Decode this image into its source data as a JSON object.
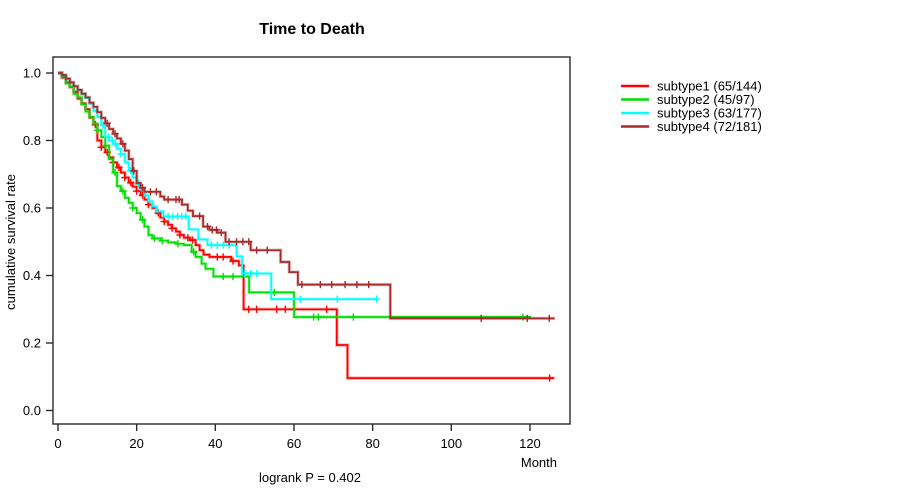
{
  "title": "Time to Death",
  "footnote": "logrank P = 0.402",
  "chart_data": {
    "type": "line",
    "variant": "kaplan-meier-step-curves",
    "title": "Time to Death",
    "xlabel": "Month",
    "ylabel": "cumulative survival rate",
    "annotation": "logrank P = 0.402",
    "xlim": [
      0,
      130
    ],
    "ylim": [
      0.0,
      1.0
    ],
    "x_ticks": [
      0,
      20,
      40,
      60,
      80,
      100,
      120
    ],
    "y_tick_labels": [
      "0.0",
      "0.2",
      "0.4",
      "0.6",
      "0.8",
      "1.0"
    ],
    "grid": false,
    "legend_position": "right-outside",
    "axis_color": "#2a2a2a",
    "series": [
      {
        "name": "subtype1",
        "label": "subtype1 (65/144)",
        "events": 65,
        "n": 144,
        "color": "#FF0000",
        "end_month": 126.2,
        "steps": [
          [
            0,
            1.0
          ],
          [
            1,
            0.986
          ],
          [
            2,
            0.972
          ],
          [
            3,
            0.958
          ],
          [
            4,
            0.944
          ],
          [
            5,
            0.924
          ],
          [
            6,
            0.91
          ],
          [
            7,
            0.893
          ],
          [
            8,
            0.868
          ],
          [
            9,
            0.847
          ],
          [
            10,
            0.8
          ],
          [
            11,
            0.78
          ],
          [
            12,
            0.765
          ],
          [
            13,
            0.75
          ],
          [
            14,
            0.735
          ],
          [
            15,
            0.72
          ],
          [
            16,
            0.705
          ],
          [
            17,
            0.69
          ],
          [
            18,
            0.675
          ],
          [
            19,
            0.663
          ],
          [
            20,
            0.65
          ],
          [
            21,
            0.638
          ],
          [
            22,
            0.625
          ],
          [
            23,
            0.61
          ],
          [
            24,
            0.6
          ],
          [
            25,
            0.585
          ],
          [
            26,
            0.572
          ],
          [
            27,
            0.56
          ],
          [
            28,
            0.55
          ],
          [
            29,
            0.54
          ],
          [
            30,
            0.53
          ],
          [
            31,
            0.52
          ],
          [
            32,
            0.512
          ],
          [
            33.5,
            0.505
          ],
          [
            35,
            0.49
          ],
          [
            36,
            0.475
          ],
          [
            37,
            0.462
          ],
          [
            38.5,
            0.455
          ],
          [
            44,
            0.443
          ],
          [
            46,
            0.43
          ],
          [
            47.2,
            0.3
          ],
          [
            70.9,
            0.194
          ],
          [
            73.6,
            0.096
          ]
        ],
        "censor_months": [
          9.5,
          11,
          12.5,
          14,
          15.5,
          17,
          18.5,
          20,
          21.5,
          23,
          25.5,
          27,
          29,
          31,
          33,
          34.2,
          40.5,
          42,
          44.5,
          48.5,
          50.5,
          55.6,
          57.8,
          68.3,
          125
        ]
      },
      {
        "name": "subtype2",
        "label": "subtype2 (45/97)",
        "events": 45,
        "n": 97,
        "color": "#00DD00",
        "end_month": 120.3,
        "steps": [
          [
            0,
            1.0
          ],
          [
            1,
            0.99
          ],
          [
            2,
            0.969
          ],
          [
            3,
            0.959
          ],
          [
            4,
            0.938
          ],
          [
            5,
            0.928
          ],
          [
            6,
            0.907
          ],
          [
            7,
            0.886
          ],
          [
            8,
            0.87
          ],
          [
            9,
            0.85
          ],
          [
            10,
            0.83
          ],
          [
            11,
            0.81
          ],
          [
            12,
            0.785
          ],
          [
            13,
            0.745
          ],
          [
            14,
            0.705
          ],
          [
            15,
            0.665
          ],
          [
            16,
            0.65
          ],
          [
            17,
            0.63
          ],
          [
            18,
            0.615
          ],
          [
            19,
            0.6
          ],
          [
            20,
            0.585
          ],
          [
            21,
            0.565
          ],
          [
            22,
            0.545
          ],
          [
            23,
            0.52
          ],
          [
            24,
            0.51
          ],
          [
            26,
            0.503
          ],
          [
            28,
            0.498
          ],
          [
            30,
            0.494
          ],
          [
            32,
            0.49
          ],
          [
            34,
            0.47
          ],
          [
            35,
            0.455
          ],
          [
            36.5,
            0.435
          ],
          [
            37.5,
            0.42
          ],
          [
            39.5,
            0.397
          ],
          [
            48.6,
            0.35
          ],
          [
            60,
            0.277
          ]
        ],
        "censor_months": [
          10,
          12,
          14.5,
          16.5,
          19,
          21.5,
          24.5,
          26.5,
          30.5,
          34.5,
          42,
          44.5,
          55,
          65,
          66.2,
          75.1,
          118.2
        ]
      },
      {
        "name": "subtype3",
        "label": "subtype3 (63/177)",
        "events": 63,
        "n": 177,
        "color": "#00FFFF",
        "end_month": 81.3,
        "steps": [
          [
            0,
            1.0
          ],
          [
            1,
            0.994
          ],
          [
            2,
            0.983
          ],
          [
            3,
            0.972
          ],
          [
            4,
            0.96
          ],
          [
            5,
            0.949
          ],
          [
            6,
            0.937
          ],
          [
            7,
            0.926
          ],
          [
            8,
            0.909
          ],
          [
            9,
            0.888
          ],
          [
            10,
            0.87
          ],
          [
            11,
            0.845
          ],
          [
            12,
            0.81
          ],
          [
            13,
            0.8
          ],
          [
            14,
            0.79
          ],
          [
            15,
            0.775
          ],
          [
            16,
            0.76
          ],
          [
            17,
            0.735
          ],
          [
            18,
            0.71
          ],
          [
            19,
            0.69
          ],
          [
            20,
            0.672
          ],
          [
            21,
            0.655
          ],
          [
            22,
            0.637
          ],
          [
            23,
            0.62
          ],
          [
            24,
            0.605
          ],
          [
            25,
            0.59
          ],
          [
            26.8,
            0.575
          ],
          [
            33.2,
            0.537
          ],
          [
            35.7,
            0.507
          ],
          [
            38,
            0.49
          ],
          [
            45.4,
            0.457
          ],
          [
            46.8,
            0.406
          ],
          [
            54.2,
            0.33
          ]
        ],
        "censor_months": [
          11.5,
          12.8,
          13.8,
          14.6,
          16,
          18.5,
          20.5,
          28,
          29.2,
          30.4,
          31.5,
          32.5,
          39,
          40.5,
          42,
          43.5,
          47.5,
          49,
          50.5,
          61.6,
          71,
          81
        ]
      },
      {
        "name": "subtype4",
        "label": "subtype4 (72/181)",
        "events": 72,
        "n": 181,
        "color": "#A52A2A",
        "end_month": 126.3,
        "steps": [
          [
            0,
            1.0
          ],
          [
            1,
            0.994
          ],
          [
            2,
            0.983
          ],
          [
            3,
            0.972
          ],
          [
            4,
            0.961
          ],
          [
            5,
            0.95
          ],
          [
            6,
            0.939
          ],
          [
            7,
            0.928
          ],
          [
            8,
            0.912
          ],
          [
            9,
            0.9
          ],
          [
            10,
            0.884
          ],
          [
            11,
            0.867
          ],
          [
            12,
            0.851
          ],
          [
            13,
            0.834
          ],
          [
            14,
            0.82
          ],
          [
            15,
            0.806
          ],
          [
            16,
            0.79
          ],
          [
            17,
            0.77
          ],
          [
            18,
            0.745
          ],
          [
            19,
            0.71
          ],
          [
            20,
            0.674
          ],
          [
            21,
            0.66
          ],
          [
            22,
            0.648
          ],
          [
            26,
            0.634
          ],
          [
            27,
            0.625
          ],
          [
            31.5,
            0.61
          ],
          [
            33,
            0.592
          ],
          [
            34.3,
            0.576
          ],
          [
            36.9,
            0.545
          ],
          [
            38.5,
            0.535
          ],
          [
            40.5,
            0.527
          ],
          [
            42.6,
            0.5
          ],
          [
            49,
            0.475
          ],
          [
            56.6,
            0.44
          ],
          [
            58.8,
            0.41
          ],
          [
            61,
            0.373
          ],
          [
            84.5,
            0.273
          ]
        ],
        "censor_months": [
          12.5,
          14.5,
          16.5,
          19.3,
          21.5,
          23.5,
          25,
          28,
          30,
          30.8,
          36,
          38,
          39.2,
          40.3,
          41.5,
          43.5,
          45.4,
          47,
          48.5,
          50.5,
          53.2,
          62,
          66.7,
          69.6,
          73,
          76,
          79,
          107.6,
          119.3,
          124.9
        ]
      }
    ]
  }
}
